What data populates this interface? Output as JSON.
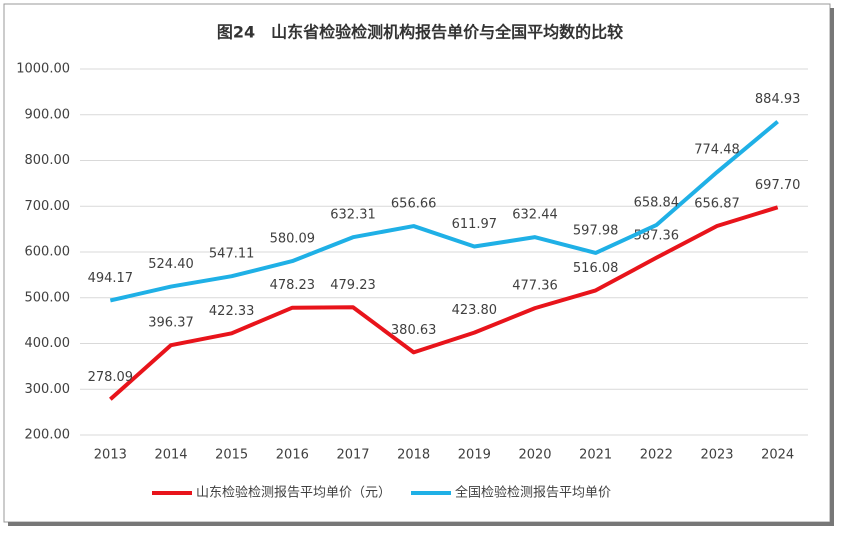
{
  "chart_data": {
    "type": "line",
    "title": "图24　山东省检验检测机构报告单价与全国平均数的比较",
    "categories": [
      "2013",
      "2014",
      "2015",
      "2016",
      "2017",
      "2018",
      "2019",
      "2020",
      "2021",
      "2022",
      "2023",
      "2024"
    ],
    "series": [
      {
        "name": "山东检验检测报告平均单价（元）",
        "color": "#e8141b",
        "values": [
          278.09,
          396.37,
          422.33,
          478.23,
          479.23,
          380.63,
          423.8,
          477.36,
          516.08,
          587.36,
          656.87,
          697.7
        ],
        "value_labels": [
          "278.09",
          "396.37",
          "422.33",
          "478.23",
          "479.23",
          "380.63",
          "423.80",
          "477.36",
          "516.08",
          "587.36",
          "656.87",
          "697.70"
        ]
      },
      {
        "name": "全国检验检测报告平均单价",
        "color": "#1fb0e6",
        "values": [
          494.17,
          524.4,
          547.11,
          580.09,
          632.31,
          656.66,
          611.97,
          632.44,
          597.98,
          658.84,
          774.48,
          884.93
        ],
        "value_labels": [
          "494.17",
          "524.40",
          "547.11",
          "580.09",
          "632.31",
          "656.66",
          "611.97",
          "632.44",
          "597.98",
          "658.84",
          "774.48",
          "884.93"
        ]
      }
    ],
    "ylim": [
      200,
      1000
    ],
    "yticks": [
      {
        "value": 200,
        "label": "200.00"
      },
      {
        "value": 300,
        "label": "300.00"
      },
      {
        "value": 400,
        "label": "400.00"
      },
      {
        "value": 500,
        "label": "500.00"
      },
      {
        "value": 600,
        "label": "600.00"
      },
      {
        "value": 700,
        "label": "700.00"
      },
      {
        "value": 800,
        "label": "800.00"
      },
      {
        "value": 900,
        "label": "900.00"
      },
      {
        "value": 1000,
        "label": "1000.00"
      }
    ],
    "grid": true
  }
}
